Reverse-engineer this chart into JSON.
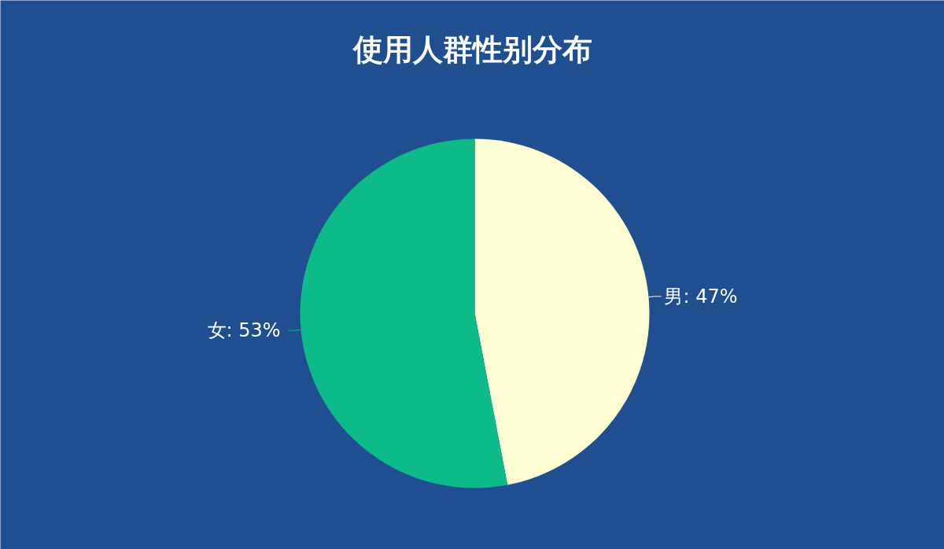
{
  "chart_data": {
    "type": "pie",
    "title": "使用人群性别分布",
    "categories": [
      "男",
      "女"
    ],
    "values": [
      47,
      53
    ],
    "colors": [
      "#ffffd3",
      "#0cbb88"
    ],
    "value_labels": [
      ": 47%",
      ": 53%"
    ]
  }
}
